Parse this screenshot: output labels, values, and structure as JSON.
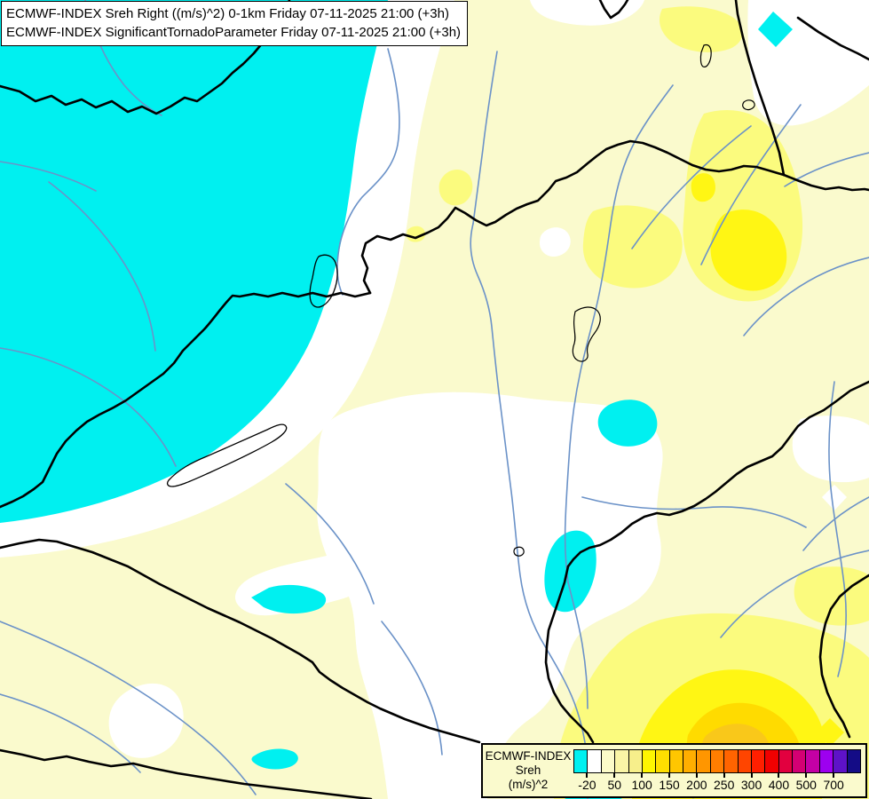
{
  "header": {
    "line1": "ECMWF-INDEX Sreh Right ((m/s)^2) 0-1km Friday 07-11-2025 21:00 (+3h)",
    "line2": "ECMWF-INDEX SignificantTornadoParameter Friday 07-11-2025 21:00 (+3h)"
  },
  "legend": {
    "title_line1": "ECMWF-INDEX",
    "title_line2": "Sreh",
    "title_line3": "(m/s)^2",
    "tick_labels": [
      "-20",
      "50",
      "100",
      "150",
      "200",
      "250",
      "300",
      "400",
      "500",
      "700"
    ],
    "colors": [
      "#00F0F0",
      "#FFFFFF",
      "#FCFBC9",
      "#FAF5A6",
      "#F7EF8B",
      "#FEF601",
      "#FEDE00",
      "#FFC600",
      "#FFAE00",
      "#FF9600",
      "#FF7E00",
      "#FF6400",
      "#FF4500",
      "#FF1F00",
      "#F10001",
      "#E2003F",
      "#D40073",
      "#C400A5",
      "#9D00F0",
      "#5E12C8",
      "#140C86"
    ]
  },
  "map": {
    "colors": {
      "background": "#FAFACD",
      "cyan_below_minus20": "#00F0F0",
      "white_band": "#FFFFFF",
      "yellow_light": "#FBFB7E",
      "yellow_bright": "#FFF614",
      "gold": "#FFDB00",
      "amber": "#F9C81A",
      "river": "#6B92C8",
      "river_gray": "#999999",
      "border": "#000000",
      "lake_outline": "#000000"
    }
  }
}
